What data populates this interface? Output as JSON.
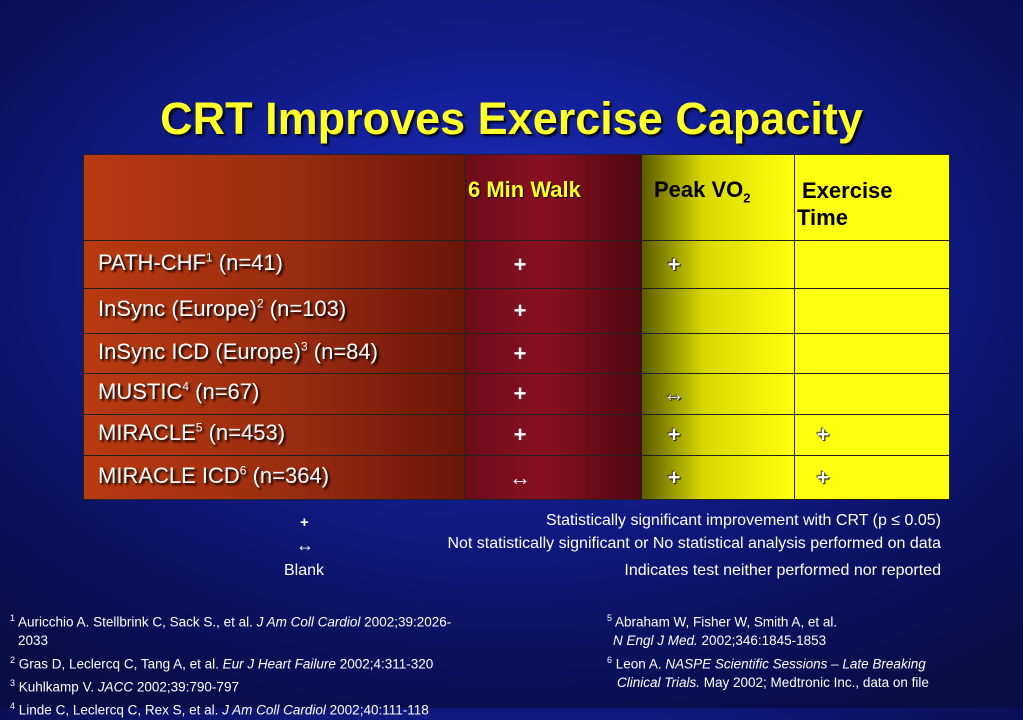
{
  "title": "CRT Improves Exercise Capacity",
  "table": {
    "headers": {
      "walk": "6 Min Walk",
      "vo2_main": "Peak VO",
      "vo2_sub": "2",
      "exercise_line1": "Exercise",
      "exercise_line2": "Time"
    },
    "rows": [
      {
        "name": "PATH-CHF",
        "ref": "1",
        "n": " (n=41)",
        "walk": "+",
        "vo2": "+",
        "exercise": ""
      },
      {
        "name": "InSync (Europe)",
        "ref": "2",
        "n": " (n=103)",
        "walk": "+",
        "vo2": "",
        "exercise": ""
      },
      {
        "name": "InSync ICD (Europe)",
        "ref": "3",
        "n": " (n=84)",
        "walk": "+",
        "vo2": "",
        "exercise": ""
      },
      {
        "name": "MUSTIC",
        "ref": "4",
        "n": " (n=67)",
        "walk": "+",
        "vo2": "↔",
        "exercise": ""
      },
      {
        "name": "MIRACLE",
        "ref": "5",
        "n": " (n=453)",
        "walk": "+",
        "vo2": "+",
        "exercise": "+"
      },
      {
        "name": "MIRACLE ICD",
        "ref": "6",
        "n": " (n=364)",
        "walk": "↔",
        "vo2": "+",
        "exercise": "+"
      }
    ]
  },
  "legend": [
    {
      "symbol": "+",
      "text": "Statistically significant improvement with CRT (p ≤ 0.05)"
    },
    {
      "symbol": "↔",
      "text": "Not statistically significant or No statistical analysis performed on data"
    },
    {
      "symbol": "Blank",
      "text": "Indicates test neither performed nor reported"
    }
  ],
  "references": {
    "r1_num": "1",
    "r1_a": "Auricchio A. Stellbrink C, Sack S., et al. ",
    "r1_j": "J Am Coll Cardiol",
    "r1_b": " 2002;39:2026-",
    "r1_c": "2033",
    "r2_num": "2",
    "r2_a": "Gras D, Leclercq C, Tang A, et al. ",
    "r2_j": "Eur J Heart Failure",
    "r2_b": " 2002;4:311-320",
    "r3_num": "3",
    "r3_a": "Kuhlkamp V. ",
    "r3_j": "JACC",
    "r3_b": " 2002;39:790-797",
    "r4_num": "4",
    "r4_a": "Linde C, Leclercq C, Rex S, et al. ",
    "r4_j": "J Am Coll Cardiol",
    "r4_b": "  2002;40:111-118",
    "r5_num": "5",
    "r5_a": "Abraham W, Fisher W, Smith A, et al.",
    "r5_j": "N Engl J Med.",
    "r5_b": " 2002;346:1845-1853",
    "r6_num": "6",
    "r6_a": "Leon A. ",
    "r6_j": "NASPE Scientific Sessions – Late Breaking",
    "r6_j2": "Clinical Trials.",
    "r6_b": " May 2002; Medtronic Inc., data on file"
  },
  "colors": {
    "title": "#ffff2a",
    "background": "#14209a",
    "col_study": "#b83a10",
    "col_walk": "#7a0e1c",
    "col_yellow": "#ffff10"
  }
}
